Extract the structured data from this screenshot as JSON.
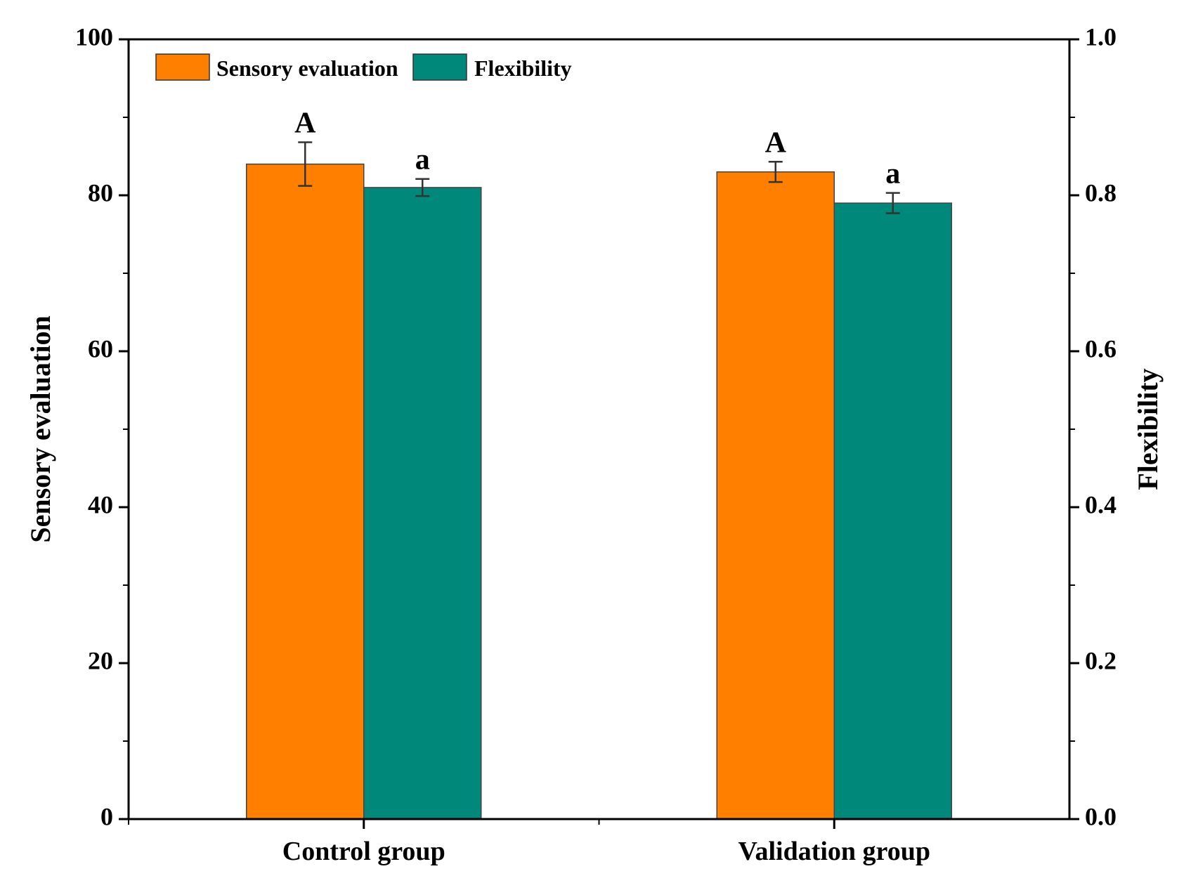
{
  "chart_data": {
    "type": "bar",
    "categories": [
      "Control group",
      "Validation group"
    ],
    "series": [
      {
        "name": "Sensory evaluation",
        "axis": "left",
        "color": "#FF7F00",
        "values": [
          84,
          83
        ],
        "errors": [
          2.8,
          1.3
        ],
        "labels": [
          "A",
          "A"
        ]
      },
      {
        "name": "Flexibility",
        "axis": "right",
        "color": "#00897B",
        "values": [
          0.81,
          0.79
        ],
        "errors": [
          0.011,
          0.013
        ],
        "labels": [
          "a",
          "a"
        ]
      }
    ],
    "ylabel": "Sensory evaluation",
    "y2label": "Flexibility",
    "ylim": [
      0,
      100
    ],
    "y2lim": [
      0,
      1.0
    ],
    "yticks": [
      "0",
      "20",
      "40",
      "60",
      "80",
      "100"
    ],
    "y2ticks": [
      "0.0",
      "0.2",
      "0.4",
      "0.6",
      "0.8",
      "1.0"
    ],
    "legend": "top-left",
    "grid": false
  }
}
